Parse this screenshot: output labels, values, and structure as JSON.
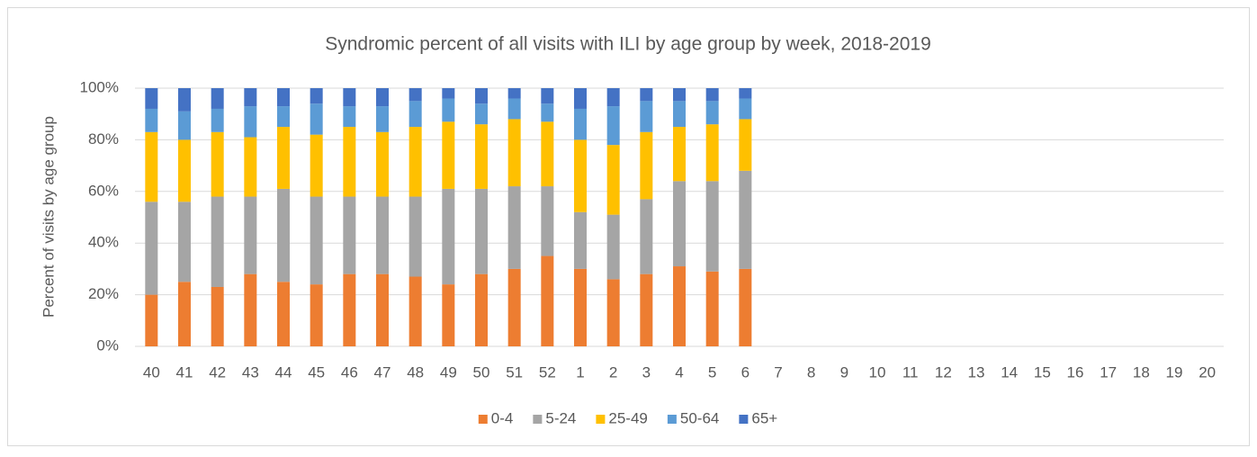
{
  "chart_data": {
    "type": "stacked_bar",
    "title": "Syndromic percent of all visits with ILI by age group by week, 2018-2019",
    "y_label": "Percent of visits by age group",
    "categories": [
      "40",
      "41",
      "42",
      "43",
      "44",
      "45",
      "46",
      "47",
      "48",
      "49",
      "50",
      "51",
      "52",
      "1",
      "2",
      "3",
      "4",
      "5",
      "6",
      "7",
      "8",
      "9",
      "10",
      "11",
      "12",
      "13",
      "14",
      "15",
      "16",
      "17",
      "18",
      "19",
      "20"
    ],
    "series": [
      {
        "name": "0-4",
        "color": "#ed7d31",
        "values": [
          20,
          25,
          23,
          28,
          25,
          24,
          28,
          28,
          27,
          24,
          28,
          30,
          35,
          30,
          26,
          28,
          31,
          29,
          30,
          null,
          null,
          null,
          null,
          null,
          null,
          null,
          null,
          null,
          null,
          null,
          null,
          null,
          null
        ]
      },
      {
        "name": "5-24",
        "color": "#a5a5a5",
        "values": [
          36,
          31,
          35,
          30,
          36,
          34,
          30,
          30,
          31,
          37,
          33,
          32,
          27,
          22,
          25,
          29,
          33,
          35,
          38,
          null,
          null,
          null,
          null,
          null,
          null,
          null,
          null,
          null,
          null,
          null,
          null,
          null,
          null
        ]
      },
      {
        "name": "25-49",
        "color": "#ffc000",
        "values": [
          27,
          24,
          25,
          23,
          24,
          24,
          27,
          25,
          27,
          26,
          25,
          26,
          25,
          28,
          27,
          26,
          21,
          22,
          20,
          null,
          null,
          null,
          null,
          null,
          null,
          null,
          null,
          null,
          null,
          null,
          null,
          null,
          null
        ]
      },
      {
        "name": "50-64",
        "color": "#5b9bd5",
        "values": [
          9,
          11,
          9,
          12,
          8,
          12,
          8,
          10,
          10,
          9,
          8,
          8,
          7,
          12,
          15,
          12,
          10,
          9,
          8,
          null,
          null,
          null,
          null,
          null,
          null,
          null,
          null,
          null,
          null,
          null,
          null,
          null,
          null
        ]
      },
      {
        "name": "65+",
        "color": "#4472c4",
        "values": [
          8,
          9,
          8,
          7,
          7,
          6,
          7,
          7,
          5,
          4,
          6,
          4,
          6,
          8,
          7,
          5,
          5,
          5,
          4,
          null,
          null,
          null,
          null,
          null,
          null,
          null,
          null,
          null,
          null,
          null,
          null,
          null,
          null
        ]
      }
    ],
    "ylim": [
      0,
      100
    ],
    "yticks": [
      {
        "value": 0,
        "label": "0%"
      },
      {
        "value": 20,
        "label": "20%"
      },
      {
        "value": 40,
        "label": "40%"
      },
      {
        "value": 60,
        "label": "60%"
      },
      {
        "value": 80,
        "label": "80%"
      },
      {
        "value": 100,
        "label": "100%"
      }
    ],
    "grid": true
  }
}
